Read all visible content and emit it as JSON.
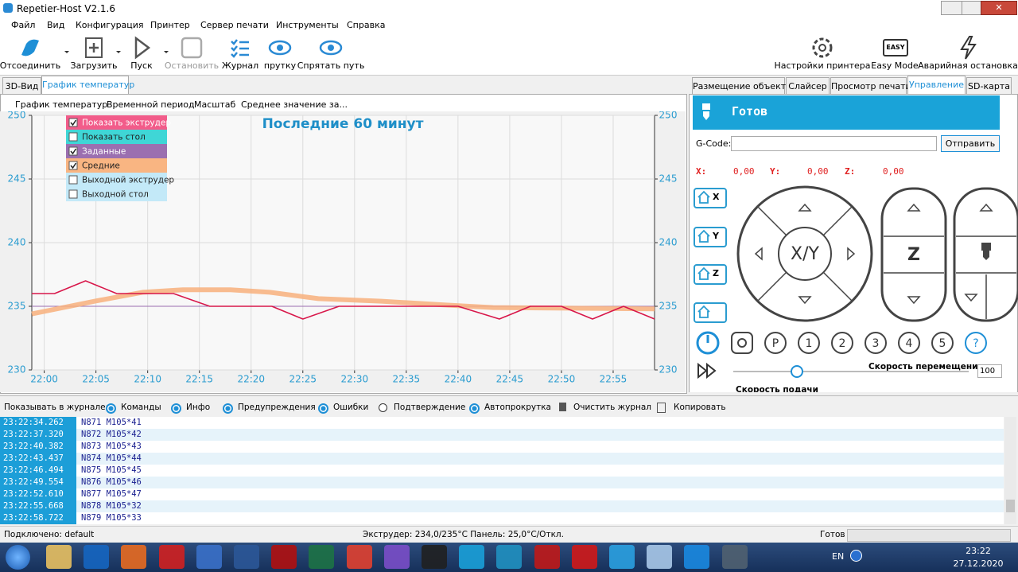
{
  "window": {
    "title": "Repetier-Host V2.1.6"
  },
  "menu": [
    "Файл",
    "Вид",
    "Конфигурация",
    "Принтер",
    "Сервер печати",
    "Инструменты",
    "Справка"
  ],
  "toolbar": {
    "left": [
      "Отсоединить",
      "Загрузить",
      "Пуск",
      "Остановить",
      "Журнал",
      "прутку",
      "Спрятать путь"
    ],
    "right": [
      "Настройки принтера",
      "Easy Mode",
      "Аварийная остановка"
    ],
    "easy_badge": "EASY"
  },
  "left_tabs": [
    "3D-Вид",
    "График температур"
  ],
  "chart_menu": [
    "График температур",
    "Временной период",
    "Масштаб",
    "Среднее значение за..."
  ],
  "chart_data": {
    "type": "line",
    "title": "Последние 60 минут",
    "xlim": [
      -1.2,
      59
    ],
    "xticks": [
      {
        "value": 0,
        "label": "22:00"
      },
      {
        "value": 5,
        "label": "22:05"
      },
      {
        "value": 10,
        "label": "22:10"
      },
      {
        "value": 15,
        "label": "22:15"
      },
      {
        "value": 20,
        "label": "22:20"
      },
      {
        "value": 25,
        "label": "22:25"
      },
      {
        "value": 30,
        "label": "22:30"
      },
      {
        "value": 35,
        "label": "22:35"
      },
      {
        "value": 40,
        "label": "22:40"
      },
      {
        "value": 45,
        "label": "22:45"
      },
      {
        "value": 50,
        "label": "22:50"
      },
      {
        "value": 55,
        "label": "22:55"
      }
    ],
    "ylim": [
      230,
      250
    ],
    "yticks": [
      230,
      235,
      240,
      245,
      250
    ],
    "grid": true,
    "series": [
      {
        "name": "Показать экструдер",
        "color": "#f25c8a",
        "line_color": "#d8174a",
        "checked": true,
        "x": [
          -1.2,
          1,
          4,
          7,
          12.5,
          16,
          22,
          25,
          28.5,
          40,
          44,
          47,
          50,
          53,
          56,
          59
        ],
        "values": [
          236,
          236,
          237,
          236,
          236,
          235,
          235,
          234,
          235,
          235,
          234,
          235,
          235,
          234,
          235,
          234
        ]
      },
      {
        "name": "Показать стол",
        "color": "#3fd6d6",
        "checked": false
      },
      {
        "name": "Заданные",
        "color": "#9b6fb0",
        "line_color": "#9a6cb0",
        "checked": true,
        "x": [
          -1.2,
          59
        ],
        "values": [
          235,
          235
        ]
      },
      {
        "name": "Средние",
        "color": "#f9b582",
        "line_color": "#f8b07c",
        "checked": true,
        "x": [
          -1.2,
          4.9,
          9.5,
          13.4,
          18,
          21.8,
          26.5,
          32.6,
          38.8,
          43.4,
          59
        ],
        "values": [
          234.4,
          235.4,
          236.1,
          236.3,
          236.3,
          236.1,
          235.6,
          235.4,
          235.1,
          234.9,
          234.8
        ]
      },
      {
        "name": "Выходной экструдер",
        "color": "#c3e9f8",
        "checked": false
      },
      {
        "name": "Выходной стол",
        "color": "#c3e9f8",
        "checked": false
      }
    ]
  },
  "control": {
    "tabs": [
      "Размещение объекта",
      "Слайсер",
      "Просмотр печати",
      "Управление",
      "SD-карта"
    ],
    "status": "Готов",
    "gcode_label": "G-Code:",
    "send": "Отправить",
    "coords": [
      {
        "label": "X:",
        "value": "0,00"
      },
      {
        "label": "Y:",
        "value": "0,00"
      },
      {
        "label": "Z:",
        "value": "0,00"
      }
    ],
    "home": [
      "X",
      "Y",
      "Z"
    ],
    "xy": "X/Y",
    "z": "Z",
    "buttons": [
      "P",
      "1",
      "2",
      "3",
      "4",
      "5",
      "?"
    ],
    "speed_label": "Скорость перемещения",
    "speed_value": "100",
    "feed_label": "Скорость подачи"
  },
  "log": {
    "label": "Показывать в журнале:",
    "options": [
      {
        "label": "Команды",
        "checked": true
      },
      {
        "label": "Инфо",
        "checked": true
      },
      {
        "label": "Предупреждения",
        "checked": true
      },
      {
        "label": "Ошибки",
        "checked": true
      },
      {
        "label": "Подтверждение",
        "checked": false
      },
      {
        "label": "Автопрокрутка",
        "checked": true
      }
    ],
    "clear": "Очистить журнал",
    "copy": "Копировать",
    "rows": [
      [
        "23:22:34.262",
        "N871 M105*41"
      ],
      [
        "23:22:37.320",
        "N872 M105*42"
      ],
      [
        "23:22:40.382",
        "N873 M105*43"
      ],
      [
        "23:22:43.437",
        "N874 M105*44"
      ],
      [
        "23:22:46.494",
        "N875 M105*45"
      ],
      [
        "23:22:49.554",
        "N876 M105*46"
      ],
      [
        "23:22:52.610",
        "N877 M105*47"
      ],
      [
        "23:22:55.668",
        "N878 M105*32"
      ],
      [
        "23:22:58.722",
        "N879 M105*33"
      ]
    ]
  },
  "status": {
    "connection": "Подключено: default",
    "temps": "Экструдер: 234,0/235°C Панель: 25,0°C/Откл.",
    "state": "Готов"
  },
  "taskbar": {
    "lang": "EN",
    "time": "23:22",
    "date": "27.12.2020"
  }
}
